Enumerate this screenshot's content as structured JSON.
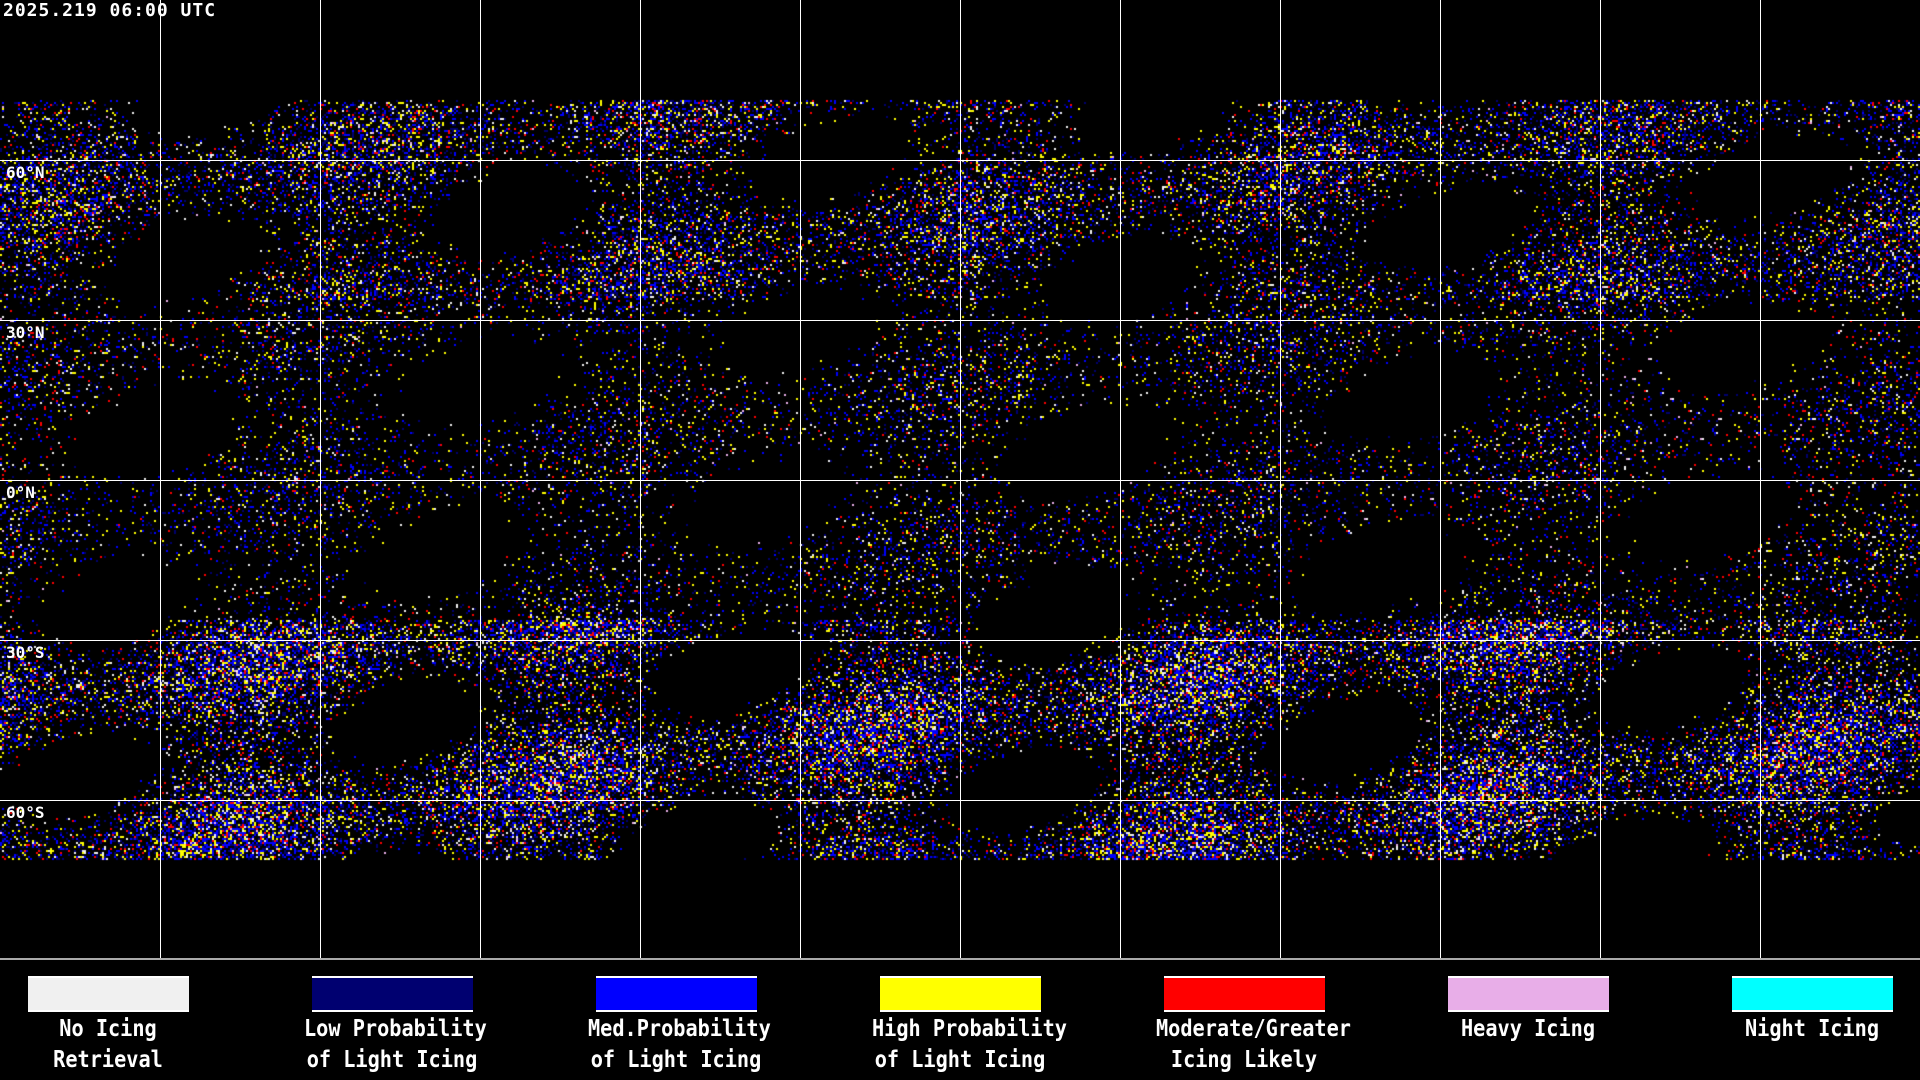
{
  "title": "2025.219 06:00 UTC",
  "latitude_labels": [
    "60°N",
    "30°N",
    "0°N",
    "30°S",
    "60°S"
  ],
  "colors": {
    "no_icing": "#f0f0f0",
    "low": "#000070",
    "med": "#0000ff",
    "high": "#ffff00",
    "moderate": "#ff0000",
    "heavy": "#e8aee8",
    "night": "#00ffff",
    "coast_grid": "#ffffff",
    "background": "#000000"
  },
  "legend": [
    {
      "line1": "No Icing",
      "line2": "Retrieval",
      "color": "#f0f0f0"
    },
    {
      "line1": "Low Probability",
      "line2": "of Light Icing",
      "color": "#000070"
    },
    {
      "line1": "Med.Probability",
      "line2": "of Light Icing",
      "color": "#0000ff"
    },
    {
      "line1": "High Probability",
      "line2": "of Light Icing",
      "color": "#ffff00"
    },
    {
      "line1": "Moderate/Greater",
      "line2": "Icing Likely",
      "color": "#ff0000"
    },
    {
      "line1": "Heavy Icing",
      "line2": "",
      "color": "#e8aee8"
    },
    {
      "line1": "Night Icing",
      "line2": "",
      "color": "#00ffff"
    }
  ]
}
